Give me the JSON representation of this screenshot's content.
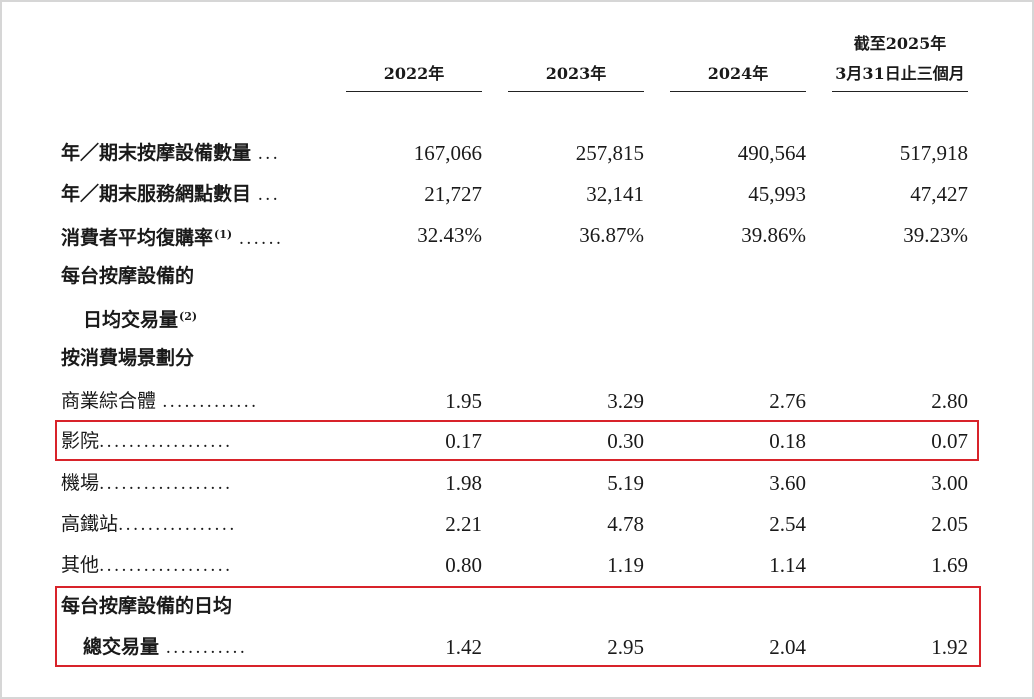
{
  "columns": [
    {
      "label": "2022年"
    },
    {
      "label": "2023年"
    },
    {
      "label": "2024年"
    },
    {
      "label_line1": "截至2025年",
      "label_line2": "3月31日止三個月"
    }
  ],
  "rows": [
    {
      "label": "年／期末按摩設備數量",
      "leader": "...",
      "values": [
        "167,066",
        "257,815",
        "490,564",
        "517,918"
      ]
    },
    {
      "label": "年／期末服務網點數目",
      "leader": "...",
      "values": [
        "21,727",
        "32,141",
        "45,993",
        "47,427"
      ]
    },
    {
      "label": "消費者平均復購率",
      "note": "(1)",
      "leader": "......",
      "values": [
        "32.43%",
        "36.87%",
        "39.86%",
        "39.23%"
      ]
    },
    {
      "label": "每台按摩設備的"
    },
    {
      "label": "日均交易量",
      "note": "(2)"
    },
    {
      "label": "按消費場景劃分"
    },
    {
      "label": "商業綜合體",
      "leader": ".............",
      "values": [
        "1.95",
        "3.29",
        "2.76",
        "2.80"
      ]
    },
    {
      "label": "影院",
      "leader": "..................",
      "values": [
        "0.17",
        "0.30",
        "0.18",
        "0.07"
      ]
    },
    {
      "label": "機場",
      "leader": "..................",
      "values": [
        "1.98",
        "5.19",
        "3.60",
        "3.00"
      ]
    },
    {
      "label": "高鐵站",
      "leader": "................",
      "values": [
        "2.21",
        "4.78",
        "2.54",
        "2.05"
      ]
    },
    {
      "label": "其他",
      "leader": "..................",
      "values": [
        "0.80",
        "1.19",
        "1.14",
        "1.69"
      ]
    },
    {
      "label": "每台按摩設備的日均"
    },
    {
      "label": "總交易量",
      "leader": "...........",
      "values": [
        "1.42",
        "2.95",
        "2.04",
        "1.92"
      ]
    }
  ],
  "highlight_color": "#d8232a"
}
